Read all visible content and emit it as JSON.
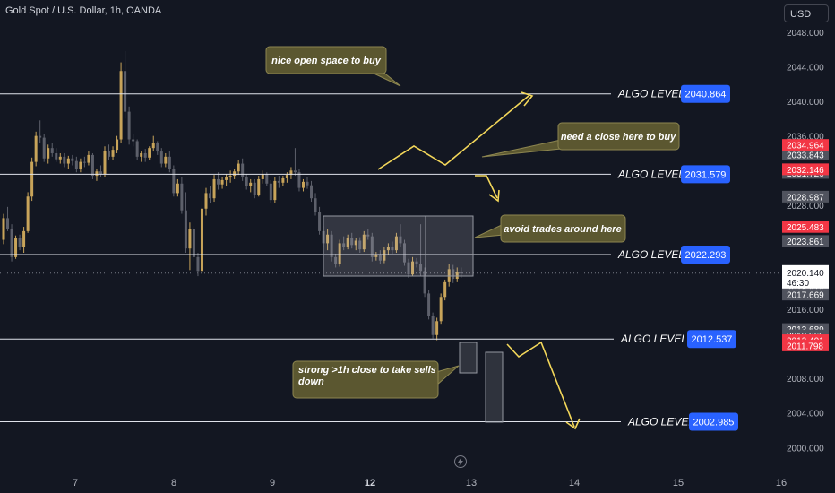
{
  "header": {
    "symbol_title": "Gold Spot / U.S. Dollar, 1h, OANDA",
    "currency": "USD"
  },
  "icons": {
    "lightning": "lightning-icon"
  },
  "colors": {
    "background": "#131722",
    "bull": "#c8a45a",
    "bear": "#5d606b",
    "level_line": "#e0e3eb",
    "level_badge": "#2962ff",
    "red_tag": "#f23645",
    "grey_tag": "#50535e",
    "note_bg": "#5b5730",
    "note_border": "#8d8650",
    "arrow": "#f3d75a",
    "axis_text": "#b2b5be"
  },
  "chart_data": {
    "type": "candlestick",
    "title": "Gold Spot / U.S. Dollar, 1h, OANDA",
    "currency": "USD",
    "x_tick_labels": [
      "7",
      "8",
      "9",
      "12",
      "13",
      "14",
      "15",
      "16"
    ],
    "y_tick_labels": [
      "2000.000",
      "2004.000",
      "2008.000",
      "2012.000",
      "2016.000",
      "2020.000",
      "2024.000",
      "2028.000",
      "2032.000",
      "2036.000",
      "2040.000",
      "2044.000",
      "2048.000"
    ],
    "ylim": [
      1999.2,
      2048.6
    ],
    "current_price": "2020.140",
    "countdown": "46:30",
    "levels": [
      {
        "label": "ALGO LEVEL",
        "value": "2040.864"
      },
      {
        "label": "ALGO LEVEL",
        "value": "2031.579"
      },
      {
        "label": "ALGO LEVEL",
        "value": "2022.293"
      },
      {
        "label": "ALGO LEVEL",
        "value": "2012.537"
      },
      {
        "label": "ALGO LEVEL",
        "value": "2002.985"
      }
    ],
    "red_price_tags": [
      "2034.964",
      "2032.146",
      "2025.483",
      "2012.401",
      "2011.798"
    ],
    "grey_price_tags": [
      "2033.843",
      "2031.810",
      "2031.726",
      "2028.987",
      "2023.861",
      "2019.438",
      "2018.414",
      "2017.669",
      "2013.689",
      "2012.965"
    ],
    "annotations": [
      "nice open space to buy",
      "need a close here to buy",
      "avoid trades around here",
      "strong >1h close to take sells down"
    ],
    "candles": [
      [
        2024.0,
        2027.0,
        2023.5,
        2026.5
      ],
      [
        2026.5,
        2027.8,
        2025.0,
        2025.3
      ],
      [
        2025.3,
        2025.8,
        2021.5,
        2022.0
      ],
      [
        2022.0,
        2024.5,
        2021.8,
        2024.2
      ],
      [
        2024.2,
        2024.6,
        2022.8,
        2023.2
      ],
      [
        2023.2,
        2025.5,
        2022.5,
        2025.0
      ],
      [
        2025.0,
        2029.5,
        2024.8,
        2029.0
      ],
      [
        2029.0,
        2033.5,
        2028.5,
        2033.0
      ],
      [
        2033.0,
        2036.5,
        2032.5,
        2036.0
      ],
      [
        2036.0,
        2037.8,
        2035.2,
        2035.8
      ],
      [
        2035.8,
        2036.2,
        2033.0,
        2033.4
      ],
      [
        2033.4,
        2035.0,
        2032.8,
        2034.6
      ],
      [
        2034.6,
        2035.2,
        2033.6,
        2034.0
      ],
      [
        2034.0,
        2034.6,
        2033.0,
        2033.3
      ],
      [
        2033.3,
        2034.0,
        2032.8,
        2033.6
      ],
      [
        2033.6,
        2034.0,
        2032.4,
        2032.8
      ],
      [
        2032.8,
        2033.7,
        2032.2,
        2033.4
      ],
      [
        2033.4,
        2033.8,
        2032.6,
        2033.1
      ],
      [
        2033.1,
        2033.6,
        2031.8,
        2032.2
      ],
      [
        2032.2,
        2033.4,
        2031.8,
        2033.0
      ],
      [
        2033.0,
        2033.6,
        2032.4,
        2032.9
      ],
      [
        2032.9,
        2034.2,
        2032.6,
        2033.8
      ],
      [
        2033.8,
        2034.0,
        2031.0,
        2031.4
      ],
      [
        2031.4,
        2032.2,
        2030.8,
        2031.9
      ],
      [
        2031.9,
        2032.6,
        2031.2,
        2031.6
      ],
      [
        2031.6,
        2034.8,
        2031.2,
        2034.3
      ],
      [
        2034.3,
        2035.0,
        2033.2,
        2033.6
      ],
      [
        2033.6,
        2034.8,
        2033.2,
        2034.4
      ],
      [
        2034.4,
        2036.0,
        2034.0,
        2035.6
      ],
      [
        2035.6,
        2044.5,
        2035.2,
        2043.5
      ],
      [
        2043.5,
        2045.8,
        2038.0,
        2038.8
      ],
      [
        2038.8,
        2039.4,
        2035.0,
        2035.6
      ],
      [
        2035.6,
        2036.2,
        2034.8,
        2035.4
      ],
      [
        2035.4,
        2035.6,
        2033.2,
        2033.6
      ],
      [
        2033.6,
        2034.2,
        2033.0,
        2034.0
      ],
      [
        2034.0,
        2034.5,
        2033.0,
        2033.5
      ],
      [
        2033.5,
        2034.8,
        2033.2,
        2034.6
      ],
      [
        2034.6,
        2036.0,
        2034.2,
        2035.2
      ],
      [
        2035.2,
        2035.4,
        2033.8,
        2034.2
      ],
      [
        2034.2,
        2034.6,
        2032.4,
        2032.8
      ],
      [
        2032.8,
        2034.0,
        2032.4,
        2033.6
      ],
      [
        2033.6,
        2034.2,
        2031.8,
        2032.2
      ],
      [
        2032.2,
        2032.6,
        2029.0,
        2029.4
      ],
      [
        2029.4,
        2031.0,
        2029.0,
        2030.5
      ],
      [
        2030.5,
        2031.2,
        2027.0,
        2027.4
      ],
      [
        2027.4,
        2029.5,
        2022.5,
        2023.0
      ],
      [
        2023.0,
        2026.0,
        2020.5,
        2025.2
      ],
      [
        2025.2,
        2025.6,
        2021.5,
        2022.0
      ],
      [
        2022.0,
        2022.5,
        2019.8,
        2020.4
      ],
      [
        2020.4,
        2028.5,
        2020.0,
        2027.6
      ],
      [
        2027.6,
        2030.0,
        2026.8,
        2029.4
      ],
      [
        2029.4,
        2030.2,
        2028.2,
        2028.8
      ],
      [
        2028.8,
        2031.5,
        2028.4,
        2031.0
      ],
      [
        2031.0,
        2031.8,
        2029.8,
        2030.4
      ],
      [
        2030.4,
        2031.2,
        2029.9,
        2030.9
      ],
      [
        2030.9,
        2031.6,
        2030.2,
        2031.2
      ],
      [
        2031.2,
        2032.0,
        2030.6,
        2031.4
      ],
      [
        2031.4,
        2032.2,
        2031.0,
        2031.9
      ],
      [
        2031.9,
        2033.2,
        2031.5,
        2032.8
      ],
      [
        2032.8,
        2033.4,
        2030.8,
        2031.2
      ],
      [
        2031.2,
        2031.6,
        2029.8,
        2030.2
      ],
      [
        2030.2,
        2031.0,
        2029.5,
        2030.6
      ],
      [
        2030.6,
        2031.0,
        2028.8,
        2029.2
      ],
      [
        2029.2,
        2031.4,
        2029.0,
        2031.0
      ],
      [
        2031.0,
        2032.0,
        2030.5,
        2031.6
      ],
      [
        2031.6,
        2031.8,
        2030.2,
        2030.5
      ],
      [
        2030.5,
        2030.9,
        2028.2,
        2028.6
      ],
      [
        2028.6,
        2031.2,
        2028.3,
        2030.8
      ],
      [
        2030.8,
        2031.4,
        2030.0,
        2030.6
      ],
      [
        2030.6,
        2031.4,
        2030.2,
        2031.1
      ],
      [
        2031.1,
        2031.8,
        2030.6,
        2031.5
      ],
      [
        2031.5,
        2032.4,
        2031.0,
        2032.0
      ],
      [
        2032.0,
        2034.6,
        2031.4,
        2031.8
      ],
      [
        2031.8,
        2032.2,
        2029.6,
        2030.0
      ],
      [
        2030.0,
        2031.0,
        2029.6,
        2030.7
      ],
      [
        2030.7,
        2031.2,
        2029.9,
        2030.3
      ],
      [
        2030.3,
        2030.8,
        2028.4,
        2028.8
      ],
      [
        2028.8,
        2029.4,
        2026.8,
        2027.2
      ],
      [
        2027.2,
        2027.8,
        2024.6,
        2025.0
      ],
      [
        2025.0,
        2025.6,
        2023.2,
        2023.6
      ],
      [
        2023.6,
        2025.2,
        2022.8,
        2024.6
      ],
      [
        2024.6,
        2025.0,
        2021.5,
        2022.0
      ],
      [
        2022.0,
        2022.4,
        2020.8,
        2021.2
      ],
      [
        2021.2,
        2024.0,
        2020.9,
        2023.6
      ],
      [
        2023.6,
        2024.4,
        2022.8,
        2023.2
      ],
      [
        2023.2,
        2024.6,
        2022.9,
        2024.2
      ],
      [
        2024.2,
        2024.8,
        2023.0,
        2023.4
      ],
      [
        2023.4,
        2024.2,
        2022.8,
        2023.9
      ],
      [
        2023.9,
        2024.3,
        2022.5,
        2022.9
      ],
      [
        2022.9,
        2025.0,
        2022.6,
        2024.6
      ],
      [
        2024.6,
        2025.2,
        2024.0,
        2024.4
      ],
      [
        2024.4,
        2024.8,
        2021.5,
        2022.0
      ],
      [
        2022.0,
        2022.6,
        2021.6,
        2022.2
      ],
      [
        2022.2,
        2022.8,
        2021.2,
        2021.6
      ],
      [
        2021.6,
        2023.2,
        2021.3,
        2022.8
      ],
      [
        2022.8,
        2023.6,
        2022.3,
        2023.2
      ],
      [
        2023.2,
        2023.8,
        2022.4,
        2022.8
      ],
      [
        2022.8,
        2024.8,
        2022.5,
        2024.4
      ],
      [
        2024.4,
        2025.8,
        2023.2,
        2023.6
      ],
      [
        2023.6,
        2024.0,
        2021.0,
        2021.4
      ],
      [
        2021.4,
        2021.8,
        2019.6,
        2020.0
      ],
      [
        2020.0,
        2022.0,
        2019.8,
        2021.5
      ],
      [
        2021.5,
        2021.9,
        2020.8,
        2021.2
      ],
      [
        2021.2,
        2025.8,
        2019.8,
        2020.4
      ],
      [
        2020.4,
        2020.8,
        2017.4,
        2017.8
      ],
      [
        2017.8,
        2018.2,
        2014.8,
        2015.2
      ],
      [
        2015.2,
        2015.6,
        2012.6,
        2013.0
      ],
      [
        2013.0,
        2015.0,
        2012.4,
        2014.6
      ],
      [
        2014.6,
        2017.8,
        2014.2,
        2017.4
      ],
      [
        2017.4,
        2019.4,
        2017.0,
        2019.1
      ],
      [
        2019.1,
        2021.2,
        2018.6,
        2020.6
      ],
      [
        2020.6,
        2021.1,
        2019.0,
        2019.5
      ],
      [
        2019.5,
        2020.8,
        2019.1,
        2020.3
      ],
      [
        2020.3,
        2020.8,
        2019.6,
        2020.1
      ]
    ]
  }
}
